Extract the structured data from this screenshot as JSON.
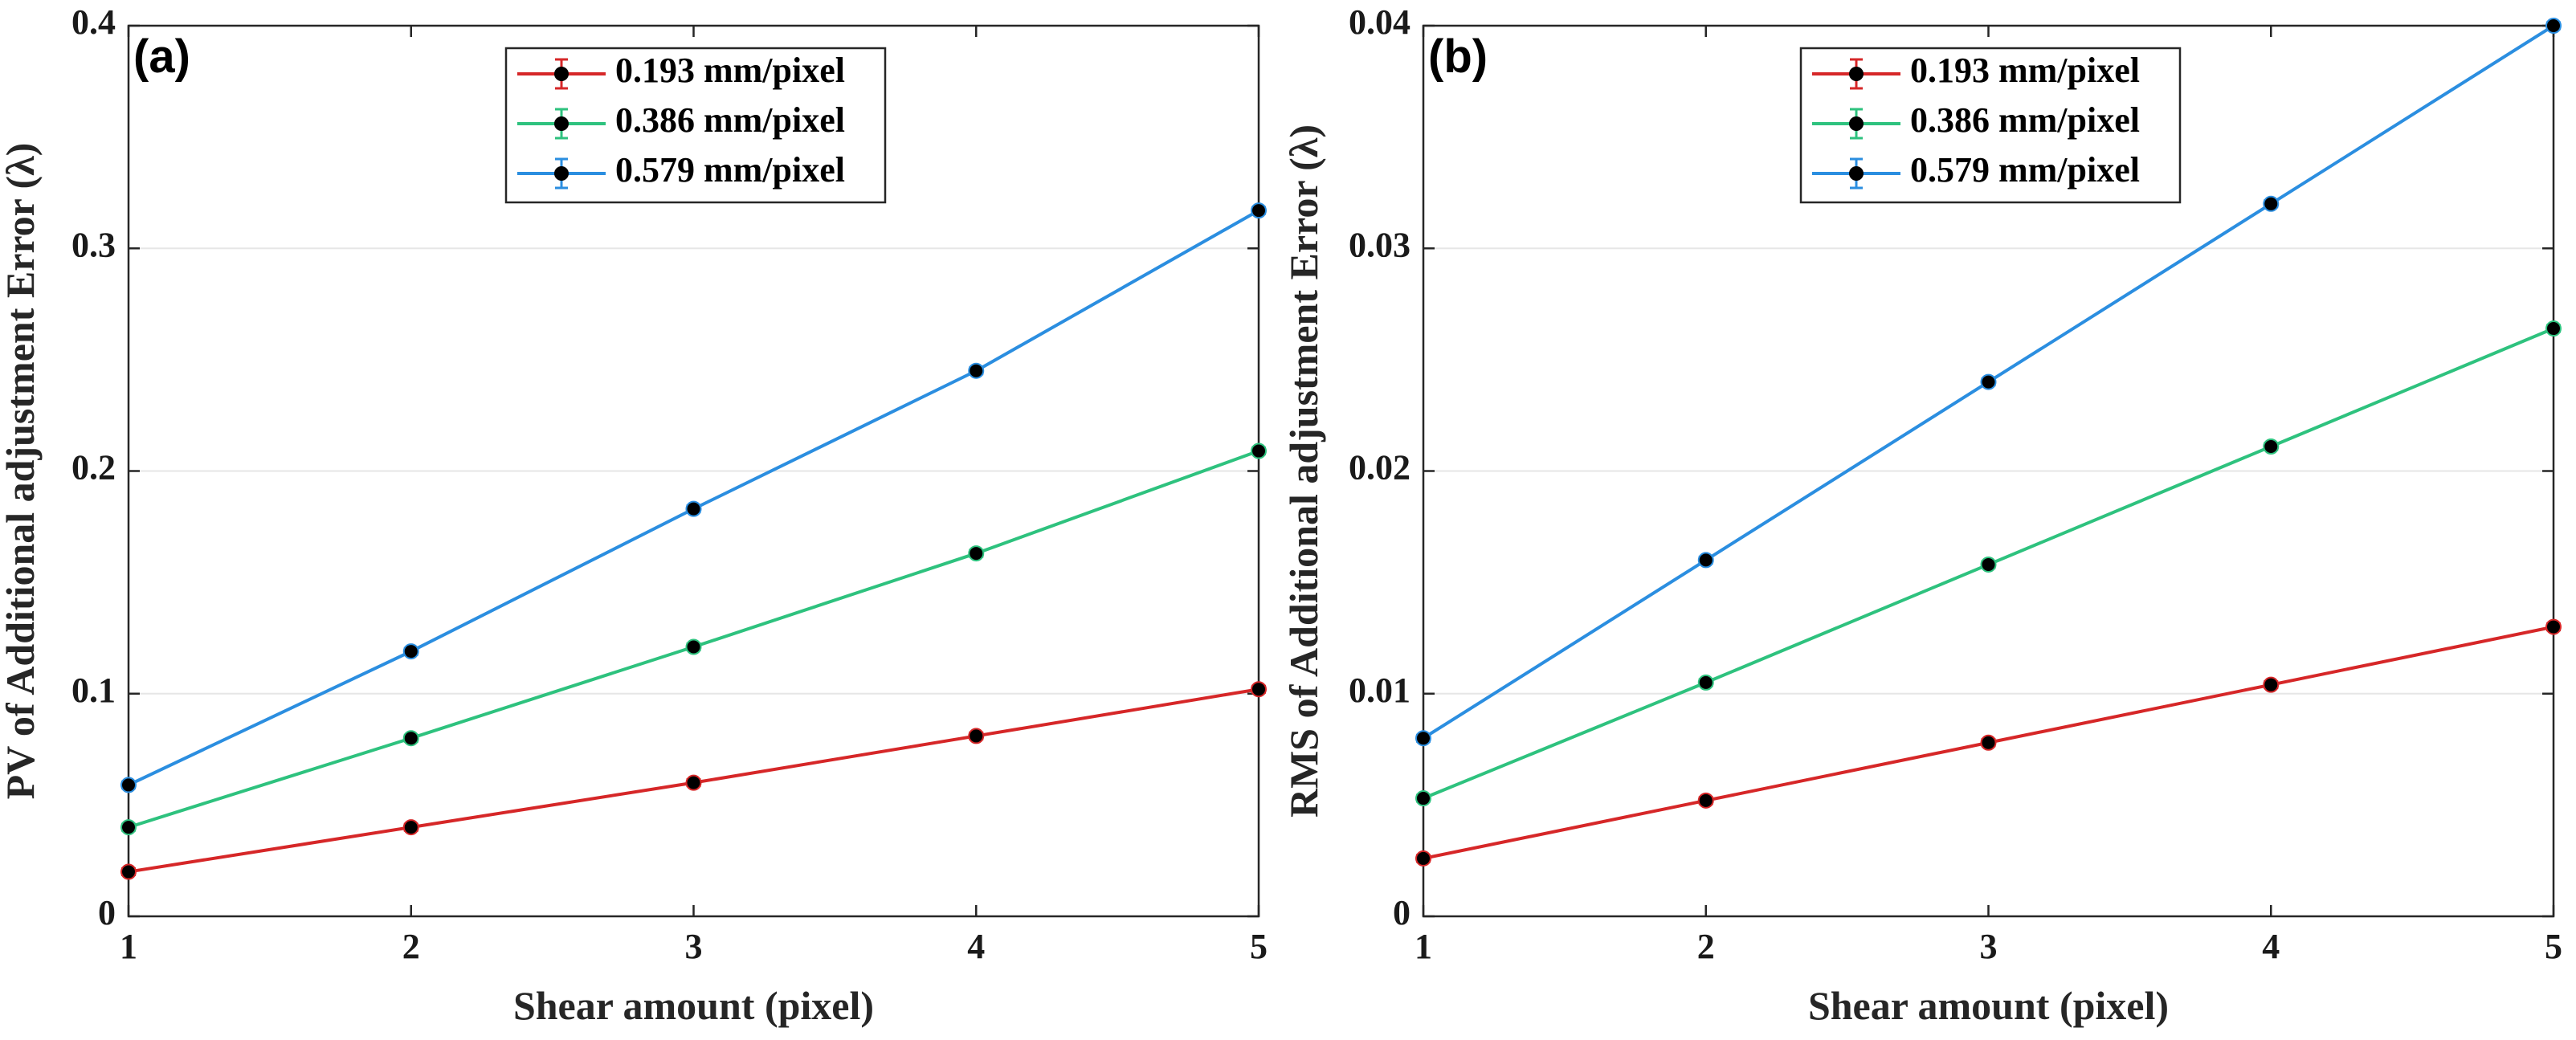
{
  "chart_data": [
    {
      "type": "line",
      "panel_label": "(a)",
      "xlabel": "Shear amount (pixel)",
      "ylabel": "PV of Additional adjustment Error (λ)",
      "x": [
        1,
        2,
        3,
        4,
        5
      ],
      "xlim": [
        1,
        5
      ],
      "ylim": [
        0,
        0.4
      ],
      "xticks": [
        "1",
        "2",
        "3",
        "4",
        "5"
      ],
      "yticks": [
        "0",
        "0.1",
        "0.2",
        "0.3",
        "0.4"
      ],
      "ytick_values": [
        0,
        0.1,
        0.2,
        0.3,
        0.4
      ],
      "grid": true,
      "legend_position": "top-center",
      "series": [
        {
          "name": "0.193 mm/pixel",
          "color": "#d62728",
          "values": [
            0.02,
            0.04,
            0.06,
            0.081,
            0.102
          ]
        },
        {
          "name": "0.386 mm/pixel",
          "color": "#2ec27e",
          "values": [
            0.04,
            0.08,
            0.121,
            0.163,
            0.209
          ]
        },
        {
          "name": "0.579 mm/pixel",
          "color": "#2b8ee0",
          "values": [
            0.059,
            0.119,
            0.183,
            0.245,
            0.317
          ]
        }
      ]
    },
    {
      "type": "line",
      "panel_label": "(b)",
      "xlabel": "Shear amount (pixel)",
      "ylabel": "RMS of Additional adjustment Error (λ)",
      "x": [
        1,
        2,
        3,
        4,
        5
      ],
      "xlim": [
        1,
        5
      ],
      "ylim": [
        0,
        0.04
      ],
      "xticks": [
        "1",
        "2",
        "3",
        "4",
        "5"
      ],
      "yticks": [
        "0",
        "0.01",
        "0.02",
        "0.03",
        "0.04"
      ],
      "ytick_values": [
        0,
        0.01,
        0.02,
        0.03,
        0.04
      ],
      "grid": true,
      "legend_position": "top-center",
      "series": [
        {
          "name": "0.193 mm/pixel",
          "color": "#d62728",
          "values": [
            0.0026,
            0.0052,
            0.0078,
            0.0104,
            0.013
          ]
        },
        {
          "name": "0.386 mm/pixel",
          "color": "#2ec27e",
          "values": [
            0.0053,
            0.0105,
            0.0158,
            0.0211,
            0.0264
          ]
        },
        {
          "name": "0.579 mm/pixel",
          "color": "#2b8ee0",
          "values": [
            0.008,
            0.016,
            0.024,
            0.032,
            0.04
          ]
        }
      ]
    }
  ]
}
